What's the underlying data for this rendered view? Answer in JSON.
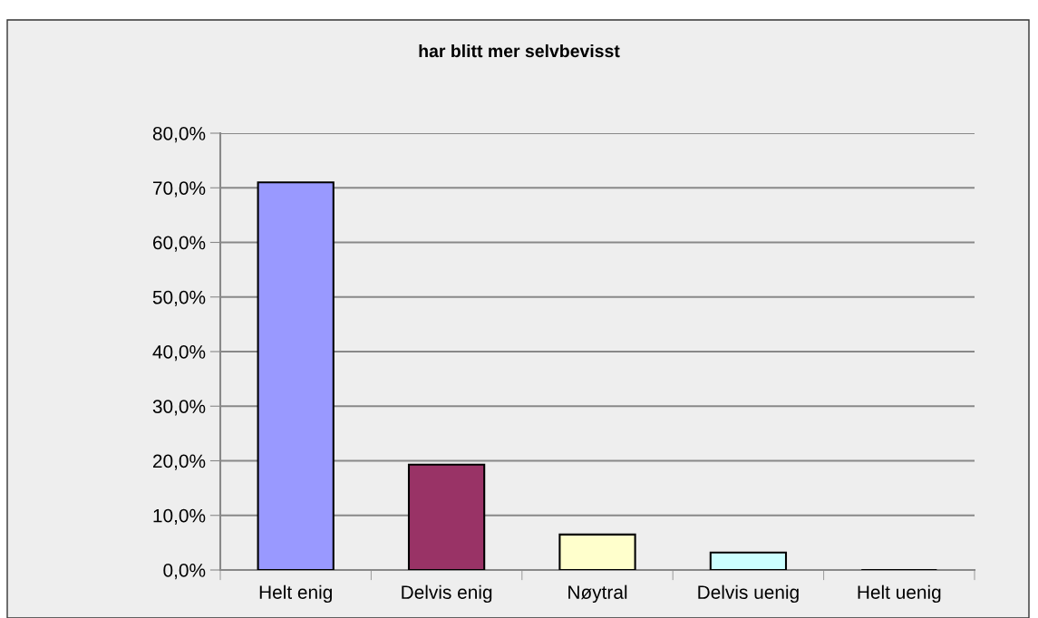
{
  "chart_data": {
    "type": "bar",
    "title": "har blitt mer selvbevisst",
    "categories": [
      "Helt enig",
      "Delvis enig",
      "Nøytral",
      "Delvis uenig",
      "Helt uenig"
    ],
    "values": [
      71.0,
      19.3,
      6.5,
      3.2,
      0
    ],
    "colors": [
      "#9999ff",
      "#993366",
      "#ffffcc",
      "#ccffff",
      "#000000"
    ],
    "ylim": [
      0,
      80
    ],
    "yticks": [
      {
        "value": 0,
        "label": "0,0%"
      },
      {
        "value": 10,
        "label": "10,0%"
      },
      {
        "value": 20,
        "label": "20,0%"
      },
      {
        "value": 30,
        "label": "30,0%"
      },
      {
        "value": 40,
        "label": "40,0%"
      },
      {
        "value": 50,
        "label": "50,0%"
      },
      {
        "value": 60,
        "label": "60,0%"
      },
      {
        "value": 70,
        "label": "70,0%"
      },
      {
        "value": 80,
        "label": "80,0%"
      }
    ],
    "grid": "y"
  }
}
